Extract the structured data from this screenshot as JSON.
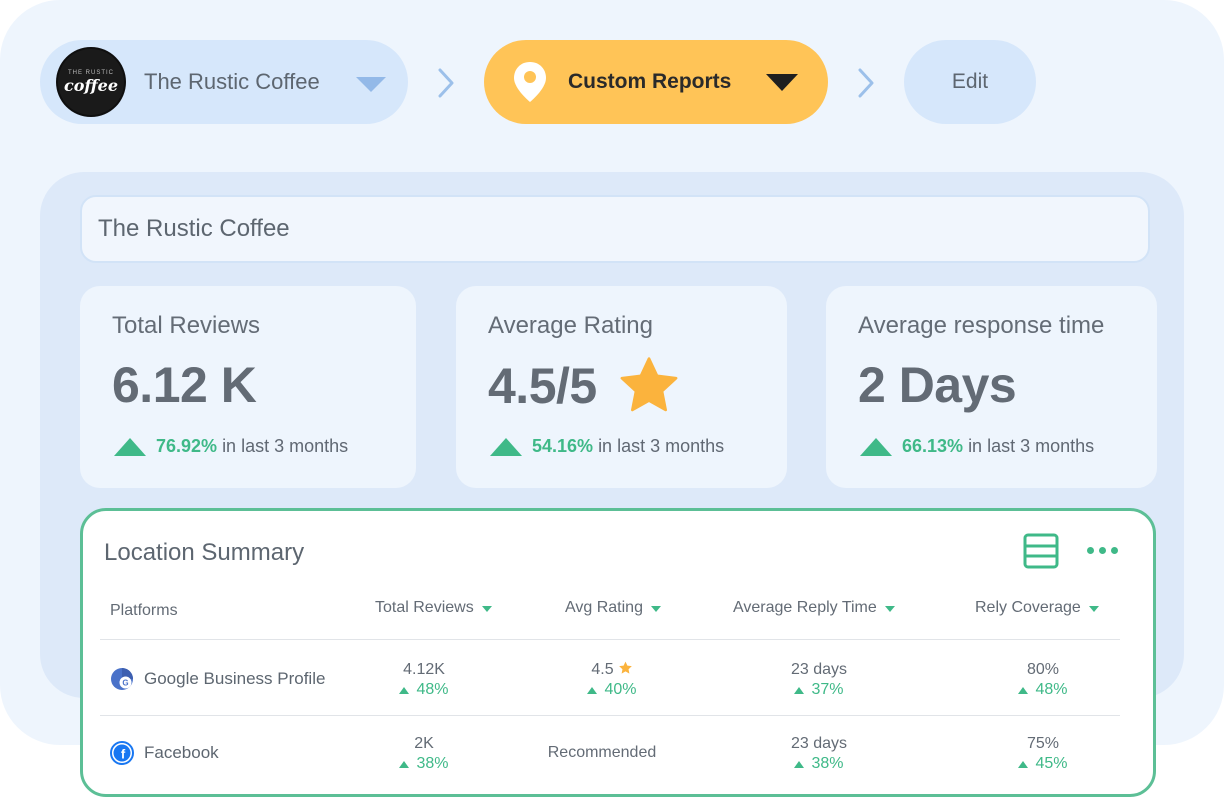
{
  "breadcrumb": {
    "location": {
      "label": "The Rustic Coffee",
      "logo_small_text": "THE RUSTIC",
      "logo_word": "coffee"
    },
    "reports": {
      "label": "Custom Reports"
    },
    "edit": {
      "label": "Edit"
    }
  },
  "location_field": {
    "value": "The Rustic Coffee"
  },
  "kpis": [
    {
      "title": "Total Reviews",
      "value": "6.12 K",
      "pct": "76.92%",
      "suffix": "in last 3 months"
    },
    {
      "title": "Average Rating",
      "value": "4.5/5",
      "pct": "54.16%",
      "suffix": "in last 3 months"
    },
    {
      "title": "Average response time",
      "value": "2 Days",
      "pct": "66.13%",
      "suffix": "in last 3 months"
    }
  ],
  "summary": {
    "title": "Location Summary",
    "columns": [
      "Platforms",
      "Total Reviews",
      "Avg Rating",
      "Average Reply Time",
      "Rely Coverage"
    ],
    "rows": [
      {
        "platform": "Google Business Profile",
        "icon": "google-icon",
        "total_reviews": "4.12K",
        "total_reviews_change": "48%",
        "avg_rating": "4.5",
        "avg_rating_change": "40%",
        "reply_time": "23 days",
        "reply_time_change": "37%",
        "coverage": "80%",
        "coverage_change": "48%"
      },
      {
        "platform": "Facebook",
        "icon": "facebook-icon",
        "total_reviews": "2K",
        "total_reviews_change": "38%",
        "avg_rating": "Recommended",
        "reply_time": "23 days",
        "reply_time_change": "38%",
        "coverage": "75%",
        "coverage_change": "45%"
      }
    ]
  },
  "colors": {
    "accent_green": "#3fb988",
    "accent_yellow": "#ffc457",
    "pill_blue": "#d6e7fb",
    "star": "#fbb33d"
  }
}
